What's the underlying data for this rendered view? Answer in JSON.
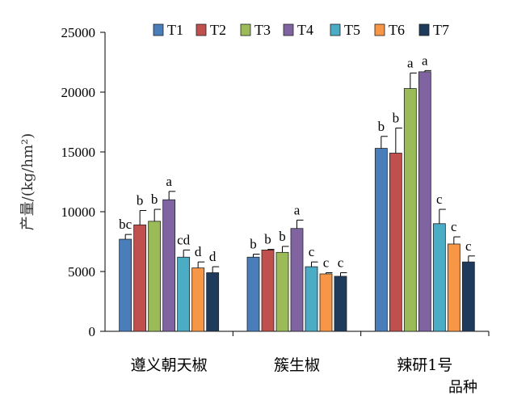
{
  "chart_data": {
    "type": "bar",
    "ylabel": "产量/(kg/hm²)",
    "xlabel": "品种",
    "ylim": [
      0,
      25000
    ],
    "yticks": [
      0,
      5000,
      10000,
      15000,
      20000,
      25000
    ],
    "categories": [
      "遵义朝天椒",
      "簇生椒",
      "辣研1号"
    ],
    "legend_position": "top-right",
    "grid": false,
    "series": [
      {
        "name": "T1",
        "color": "#4a7ebb",
        "values": [
          7700,
          6200,
          15300
        ],
        "errors": [
          400,
          250,
          1000
        ],
        "letters": [
          "bc",
          "b",
          "b"
        ]
      },
      {
        "name": "T2",
        "color": "#c0504d",
        "values": [
          8900,
          6800,
          14900
        ],
        "errors": [
          1200,
          50,
          2100
        ],
        "letters": [
          "b",
          "b",
          "b"
        ]
      },
      {
        "name": "T3",
        "color": "#9bbb59",
        "values": [
          9200,
          6600,
          20300
        ],
        "errors": [
          1000,
          500,
          1300
        ],
        "letters": [
          "b",
          "b",
          "a"
        ]
      },
      {
        "name": "T4",
        "color": "#8064a2",
        "values": [
          11000,
          8600,
          21700
        ],
        "errors": [
          700,
          700,
          100
        ],
        "letters": [
          "a",
          "a",
          "a"
        ]
      },
      {
        "name": "T5",
        "color": "#4bacc6",
        "values": [
          6200,
          5400,
          9000
        ],
        "errors": [
          600,
          400,
          1200
        ],
        "letters": [
          "cd",
          "c",
          "c"
        ]
      },
      {
        "name": "T6",
        "color": "#f79646",
        "values": [
          5300,
          4800,
          7300
        ],
        "errors": [
          500,
          100,
          600
        ],
        "letters": [
          "d",
          "c",
          "c"
        ]
      },
      {
        "name": "T7",
        "color": "#1f3b5c",
        "values": [
          4900,
          4600,
          5800
        ],
        "errors": [
          500,
          300,
          500
        ],
        "letters": [
          "d",
          "c",
          "c"
        ]
      }
    ]
  }
}
